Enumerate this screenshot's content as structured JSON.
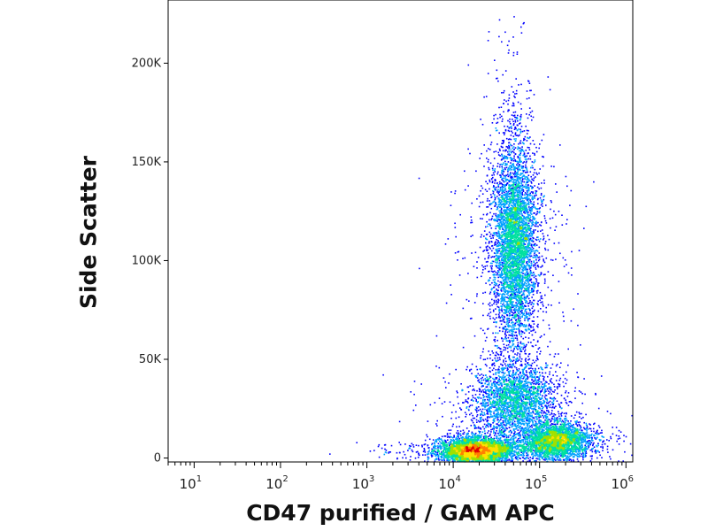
{
  "chart_data": {
    "type": "scatter",
    "title": "",
    "xlabel": "CD47 purified / GAM APC",
    "ylabel": "Side Scatter",
    "x_scale": "log",
    "xlim": [
      5,
      1200000
    ],
    "ylim": [
      -2000,
      232000
    ],
    "x_ticks": [
      {
        "base": "10",
        "exp": "1",
        "value": 10
      },
      {
        "base": "10",
        "exp": "2",
        "value": 100
      },
      {
        "base": "10",
        "exp": "3",
        "value": 1000
      },
      {
        "base": "10",
        "exp": "4",
        "value": 10000
      },
      {
        "base": "10",
        "exp": "5",
        "value": 100000
      },
      {
        "base": "10",
        "exp": "6",
        "value": 1000000
      }
    ],
    "y_ticks": [
      {
        "label": "0",
        "value": 0
      },
      {
        "label": "50K",
        "value": 50000
      },
      {
        "label": "100K",
        "value": 100000
      },
      {
        "label": "150K",
        "value": 150000
      },
      {
        "label": "200K",
        "value": 200000
      }
    ],
    "grid": false,
    "colormap": [
      "#0000ff",
      "#00a0ff",
      "#00e0a0",
      "#a0e000",
      "#ffe000",
      "#ff8000",
      "#e00000"
    ],
    "populations": [
      {
        "x_center": 50000,
        "x_spread_log": 0.13,
        "y_center": 110000,
        "y_spread": 25000,
        "count": 5000
      },
      {
        "x_center": 50000,
        "x_spread_log": 0.22,
        "y_center": 30000,
        "y_spread": 9000,
        "count": 2500
      },
      {
        "x_center": 18000,
        "x_spread_log": 0.2,
        "y_center": 4000,
        "y_spread": 3000,
        "count": 4500
      },
      {
        "x_center": 150000,
        "x_spread_log": 0.2,
        "y_center": 9000,
        "y_spread": 4500,
        "count": 3000
      }
    ]
  }
}
